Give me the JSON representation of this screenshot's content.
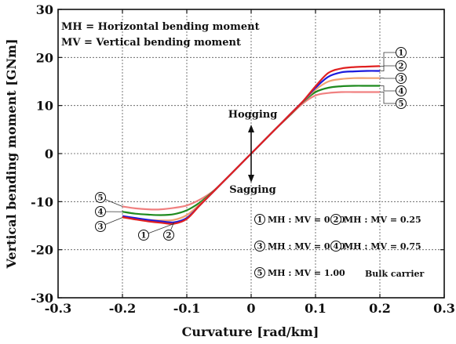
{
  "chart_data": {
    "type": "line",
    "xlabel": "Curvature [rad/km]",
    "ylabel": "Vertical bending moment [GNm]",
    "xlim": [
      -0.3,
      0.3
    ],
    "ylim": [
      -30,
      30
    ],
    "xticks": [
      "-0.3",
      "-0.2",
      "-0.1",
      "0",
      "0.1",
      "0.2",
      "0.3"
    ],
    "yticks": [
      "30",
      "20",
      "10",
      "0",
      "-10",
      "-20",
      "-30"
    ],
    "grid": "dashed",
    "notes": {
      "mh": "MH = Horizontal bending moment",
      "mv": "MV = Vertical bending moment"
    },
    "arrow_labels": {
      "up": "Hogging",
      "down": "Sagging"
    },
    "legend_items": [
      {
        "num": "1",
        "text": "MH : MV = 0.00"
      },
      {
        "num": "2",
        "text": "MH : MV = 0.25"
      },
      {
        "num": "3",
        "text": "MH : MV = 0.50"
      },
      {
        "num": "4",
        "text": "MH : MV = 0.75"
      },
      {
        "num": "5",
        "text": "MH : MV = 1.00"
      }
    ],
    "caption": "Bulk carrier",
    "series": [
      {
        "num": "1",
        "color": "#e02020",
        "x": [
          -0.2,
          -0.18,
          -0.16,
          -0.14,
          -0.12,
          -0.1,
          -0.08,
          -0.06,
          -0.04,
          -0.02,
          0,
          0.02,
          0.04,
          0.06,
          0.08,
          0.1,
          0.12,
          0.14,
          0.16,
          0.18,
          0.2
        ],
        "y": [
          -13.2,
          -13.7,
          -14.1,
          -14.4,
          -14.6,
          -13.6,
          -10.8,
          -8.1,
          -5.4,
          -2.7,
          0,
          2.7,
          5.4,
          8.1,
          10.8,
          14.0,
          16.8,
          17.7,
          18.0,
          18.1,
          18.2
        ]
      },
      {
        "num": "2",
        "color": "#1a1add",
        "x": [
          -0.2,
          -0.18,
          -0.16,
          -0.14,
          -0.12,
          -0.1,
          -0.08,
          -0.06,
          -0.04,
          -0.02,
          0,
          0.02,
          0.04,
          0.06,
          0.08,
          0.1,
          0.12,
          0.14,
          0.16,
          0.18,
          0.2
        ],
        "y": [
          -13.0,
          -13.4,
          -13.8,
          -14.1,
          -14.3,
          -13.4,
          -10.8,
          -8.1,
          -5.4,
          -2.7,
          0,
          2.7,
          5.4,
          8.1,
          10.8,
          13.7,
          16.0,
          16.9,
          17.1,
          17.2,
          17.2
        ]
      },
      {
        "num": "3",
        "color": "#f0a070",
        "x": [
          -0.2,
          -0.18,
          -0.16,
          -0.14,
          -0.12,
          -0.1,
          -0.08,
          -0.06,
          -0.04,
          -0.02,
          0,
          0.02,
          0.04,
          0.06,
          0.08,
          0.1,
          0.12,
          0.14,
          0.16,
          0.18,
          0.2
        ],
        "y": [
          -13.3,
          -13.6,
          -13.8,
          -13.9,
          -13.8,
          -12.8,
          -10.6,
          -8.1,
          -5.4,
          -2.7,
          0,
          2.7,
          5.4,
          8.1,
          10.8,
          13.3,
          15.0,
          15.5,
          15.7,
          15.7,
          15.7
        ]
      },
      {
        "num": "4",
        "color": "#1e8a1e",
        "x": [
          -0.2,
          -0.18,
          -0.16,
          -0.14,
          -0.12,
          -0.1,
          -0.08,
          -0.06,
          -0.04,
          -0.02,
          0,
          0.02,
          0.04,
          0.06,
          0.08,
          0.1,
          0.12,
          0.14,
          0.16,
          0.18,
          0.2
        ],
        "y": [
          -12.1,
          -12.5,
          -12.7,
          -12.8,
          -12.6,
          -11.8,
          -10.2,
          -8.0,
          -5.4,
          -2.7,
          0,
          2.7,
          5.4,
          8.0,
          10.7,
          12.8,
          13.7,
          14.0,
          14.1,
          14.1,
          14.1
        ]
      },
      {
        "num": "5",
        "color": "#f08080",
        "x": [
          -0.2,
          -0.18,
          -0.16,
          -0.14,
          -0.12,
          -0.1,
          -0.08,
          -0.06,
          -0.04,
          -0.02,
          0,
          0.02,
          0.04,
          0.06,
          0.08,
          0.1,
          0.12,
          0.14,
          0.16,
          0.18,
          0.2
        ],
        "y": [
          -11.0,
          -11.4,
          -11.6,
          -11.6,
          -11.3,
          -10.8,
          -9.6,
          -7.9,
          -5.4,
          -2.7,
          0,
          2.7,
          5.4,
          7.9,
          10.4,
          12.1,
          12.6,
          12.8,
          12.8,
          12.8,
          12.8
        ]
      }
    ]
  }
}
